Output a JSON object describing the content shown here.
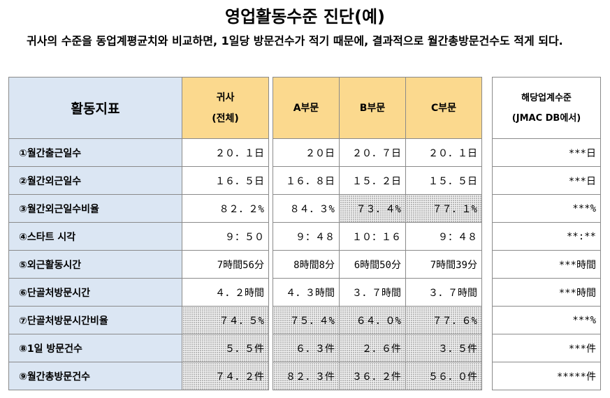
{
  "title": "영업활동수준 진단(예)",
  "description": "귀사의 수준을 동업계평균치와 비교하면, 1일당 방문건수가 적기 때문에, 결과적으로 월간총방문건수도 적게 되다.",
  "header": {
    "indicator": "활동지표",
    "company_line1": "귀사",
    "company_line2": "(전체)",
    "dept_a": "A부문",
    "dept_b": "B부문",
    "dept_c": "C부문",
    "industry_line1": "해당업계수준",
    "industry_line2": "(JMAC DB에서)"
  },
  "rows": [
    {
      "label": "①월간출근일수",
      "company": "２０．１日",
      "a": "２０日",
      "b": "２０．７日",
      "c": "２０．１日",
      "industry": "***日",
      "shade": [
        false,
        false,
        false,
        false
      ]
    },
    {
      "label": "②월간외근일수",
      "company": "１６．５日",
      "a": "１６．８日",
      "b": "１５．２日",
      "c": "１５．５日",
      "industry": "***日",
      "shade": [
        false,
        false,
        false,
        false
      ]
    },
    {
      "label": "③월간외근일수비율",
      "company": "８２．２%",
      "a": "８４．３%",
      "b": "７３．４%",
      "c": "７７．１%",
      "industry": "***%",
      "shade": [
        false,
        false,
        true,
        true
      ]
    },
    {
      "label": "④스타트 시각",
      "company": "９：５０",
      "a": "９：４８",
      "b": "１０：１６",
      "c": "９：４８",
      "industry": "**:**",
      "shade": [
        false,
        false,
        false,
        false
      ]
    },
    {
      "label": "⑤외근활동시간",
      "company": "7時間56分",
      "a": "8時間8分",
      "b": "6時間50分",
      "c": "7時間39分",
      "industry": "***時間",
      "shade": [
        false,
        false,
        false,
        false
      ]
    },
    {
      "label": "⑥단골처방문시간",
      "company": "４．２時間",
      "a": "４．３時間",
      "b": "３．７時間",
      "c": "３．７時間",
      "industry": "***時間",
      "shade": [
        false,
        false,
        false,
        false
      ]
    },
    {
      "label": "⑦단골처방문시간비율",
      "company": "７４．５%",
      "a": "７５．４%",
      "b": "６４．０%",
      "c": "７７．６%",
      "industry": "***%",
      "shade": [
        true,
        true,
        true,
        true
      ]
    },
    {
      "label": "⑧1일 방문건수",
      "company": "５．５件",
      "a": "６．３件",
      "b": "２．６件",
      "c": "３．５件",
      "industry": "***件",
      "shade": [
        true,
        true,
        true,
        true
      ]
    },
    {
      "label": "⑨월간총방문건수",
      "company": "７４．２件",
      "a": "８２．３件",
      "b": "３６．２件",
      "c": "５６．０件",
      "industry": "*****件",
      "shade": [
        true,
        true,
        true,
        true
      ]
    }
  ]
}
